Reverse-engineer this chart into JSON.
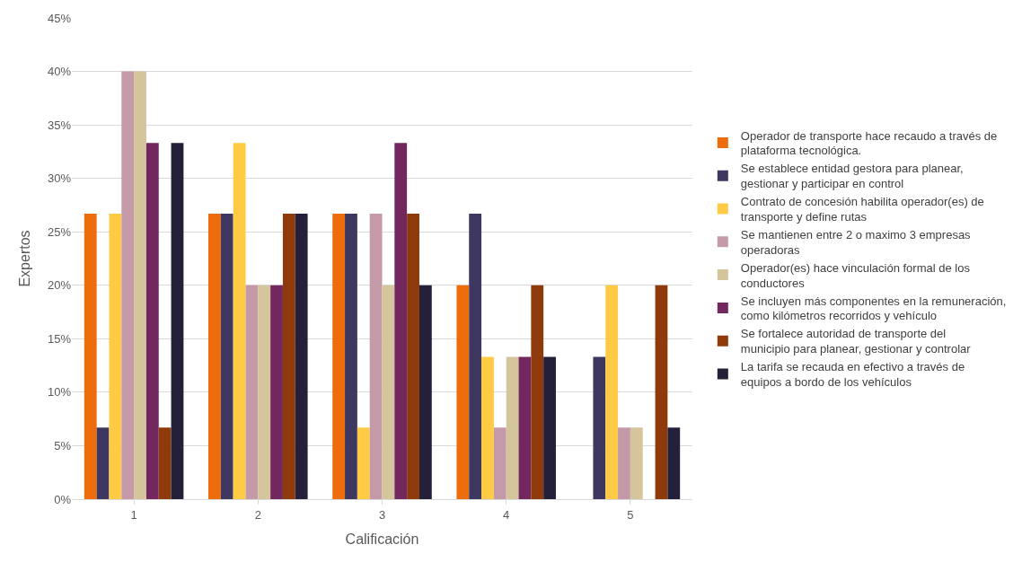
{
  "chart_data": {
    "type": "bar",
    "xlabel": "Calificación",
    "ylabel": "Expertos",
    "categories": [
      "1",
      "2",
      "3",
      "4",
      "5"
    ],
    "series": [
      {
        "name": "Operador de transporte hace recaudo a través de plataforma tecnológica.",
        "color": "#ed6d0d",
        "values": [
          26.7,
          26.7,
          26.7,
          20,
          0
        ]
      },
      {
        "name": "Se establece entidad gestora para planear, gestionar y participar en control",
        "color": "#3e375f",
        "values": [
          6.7,
          26.7,
          26.7,
          26.7,
          13.3
        ]
      },
      {
        "name": "Contrato de concesión habilita operador(es) de transporte y define rutas",
        "color": "#ffcb45",
        "values": [
          26.7,
          33.3,
          6.7,
          13.3,
          20
        ]
      },
      {
        "name": "Se mantienen entre 2 o maximo 3 empresas operadoras",
        "color": "#c59aa8",
        "values": [
          40,
          20,
          26.7,
          6.7,
          6.7
        ]
      },
      {
        "name": "Operador(es) hace vinculación formal de los conductores",
        "color": "#d5c59c",
        "values": [
          40,
          20,
          20,
          13.3,
          6.7
        ]
      },
      {
        "name": "Se incluyen más componentes en la remuneración, como kilómetros recorridos y vehículo",
        "color": "#72285f",
        "values": [
          33.3,
          20,
          33.3,
          13.3,
          0
        ]
      },
      {
        "name": "Se fortalece autoridad de transporte del municipio para planear, gestionar y controlar",
        "color": "#8e3a0b",
        "values": [
          6.7,
          26.7,
          26.7,
          20,
          20
        ]
      },
      {
        "name": "La tarifa se recauda en efectivo a través de equipos a bordo de los vehículos",
        "color": "#25203a",
        "values": [
          33.3,
          26.7,
          20,
          13.3,
          6.7
        ]
      }
    ],
    "ylim": [
      0,
      45
    ],
    "yticks": [
      {
        "value": 0,
        "label": "0%"
      },
      {
        "value": 5,
        "label": "5%"
      },
      {
        "value": 10,
        "label": "10%"
      },
      {
        "value": 15,
        "label": "15%"
      },
      {
        "value": 20,
        "label": "20%"
      },
      {
        "value": 25,
        "label": "25%"
      },
      {
        "value": 30,
        "label": "30%"
      },
      {
        "value": 35,
        "label": "35%"
      },
      {
        "value": 40,
        "label": "40%"
      },
      {
        "value": 45,
        "label": "45%"
      }
    ],
    "grid": "y",
    "legend": "right"
  }
}
